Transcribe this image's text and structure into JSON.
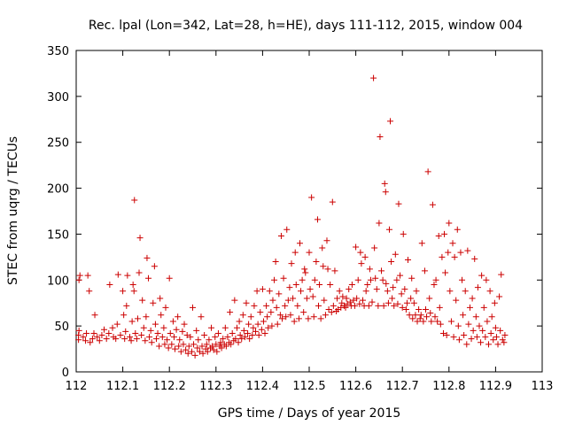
{
  "chart_data": {
    "type": "scatter",
    "title": "Rec. lpal (Lon=342, Lat=28, h=HE), days 111-112, 2015, window 004",
    "xlabel": "GPS time / Days of year 2015",
    "ylabel": "STEC from uqrg / TECUs",
    "xlim": [
      112,
      113
    ],
    "ylim": [
      0,
      350
    ],
    "xticks": [
      112,
      112.1,
      112.2,
      112.3,
      112.4,
      112.5,
      112.6,
      112.7,
      112.8,
      112.9,
      113
    ],
    "xtick_labels": [
      "112",
      "112.1",
      "112.2",
      "112.3",
      "112.4",
      "112.5",
      "112.6",
      "112.7",
      "112.8",
      "112.9",
      "113"
    ],
    "yticks": [
      0,
      50,
      100,
      150,
      200,
      250,
      300,
      350
    ],
    "ytick_labels": [
      "0",
      "50",
      "100",
      "150",
      "200",
      "250",
      "300",
      "350"
    ],
    "grid": false,
    "marker": "+",
    "color": "#cc0000",
    "points": [
      [
        112.005,
        35
      ],
      [
        112.005,
        40
      ],
      [
        112.006,
        45
      ],
      [
        112.006,
        100
      ],
      [
        112.008,
        105
      ],
      [
        112.015,
        38
      ],
      [
        112.02,
        34
      ],
      [
        112.022,
        42
      ],
      [
        112.025,
        105
      ],
      [
        112.028,
        88
      ],
      [
        112.03,
        32
      ],
      [
        112.035,
        36
      ],
      [
        112.038,
        42
      ],
      [
        112.04,
        62
      ],
      [
        112.045,
        38
      ],
      [
        112.05,
        34
      ],
      [
        112.055,
        40
      ],
      [
        112.06,
        46
      ],
      [
        112.065,
        36
      ],
      [
        112.07,
        42
      ],
      [
        112.072,
        95
      ],
      [
        112.078,
        48
      ],
      [
        112.08,
        38
      ],
      [
        112.085,
        36
      ],
      [
        112.088,
        52
      ],
      [
        112.09,
        106
      ],
      [
        112.095,
        40
      ],
      [
        112.1,
        88
      ],
      [
        112.102,
        62
      ],
      [
        112.104,
        36
      ],
      [
        112.106,
        44
      ],
      [
        112.108,
        72
      ],
      [
        112.11,
        105
      ],
      [
        112.115,
        38
      ],
      [
        112.118,
        34
      ],
      [
        112.12,
        55
      ],
      [
        112.122,
        95
      ],
      [
        112.124,
        88
      ],
      [
        112.125,
        187
      ],
      [
        112.127,
        42
      ],
      [
        112.13,
        36
      ],
      [
        112.132,
        58
      ],
      [
        112.135,
        108
      ],
      [
        112.137,
        146
      ],
      [
        112.14,
        40
      ],
      [
        112.142,
        78
      ],
      [
        112.145,
        48
      ],
      [
        112.148,
        34
      ],
      [
        112.15,
        60
      ],
      [
        112.152,
        124
      ],
      [
        112.155,
        102
      ],
      [
        112.157,
        38
      ],
      [
        112.16,
        45
      ],
      [
        112.162,
        32
      ],
      [
        112.165,
        75
      ],
      [
        112.168,
        115
      ],
      [
        112.17,
        52
      ],
      [
        112.172,
        36
      ],
      [
        112.175,
        42
      ],
      [
        112.178,
        28
      ],
      [
        112.18,
        80
      ],
      [
        112.182,
        62
      ],
      [
        112.185,
        38
      ],
      [
        112.188,
        48
      ],
      [
        112.19,
        30
      ],
      [
        112.192,
        70
      ],
      [
        112.195,
        35
      ],
      [
        112.198,
        26
      ],
      [
        112.2,
        102
      ],
      [
        112.202,
        42
      ],
      [
        112.205,
        30
      ],
      [
        112.208,
        55
      ],
      [
        112.21,
        38
      ],
      [
        112.212,
        25
      ],
      [
        112.215,
        46
      ],
      [
        112.218,
        60
      ],
      [
        112.22,
        28
      ],
      [
        112.222,
        35
      ],
      [
        112.225,
        22
      ],
      [
        112.228,
        44
      ],
      [
        112.23,
        30
      ],
      [
        112.232,
        52
      ],
      [
        112.235,
        24
      ],
      [
        112.238,
        40
      ],
      [
        112.24,
        20
      ],
      [
        112.242,
        28
      ],
      [
        112.245,
        38
      ],
      [
        112.248,
        22
      ],
      [
        112.25,
        70
      ],
      [
        112.252,
        30
      ],
      [
        112.255,
        18
      ],
      [
        112.258,
        45
      ],
      [
        112.26,
        26
      ],
      [
        112.262,
        35
      ],
      [
        112.265,
        22
      ],
      [
        112.268,
        60
      ],
      [
        112.27,
        28
      ],
      [
        112.272,
        20
      ],
      [
        112.275,
        40
      ],
      [
        112.278,
        25
      ],
      [
        112.28,
        30
      ],
      [
        112.282,
        22
      ],
      [
        112.285,
        35
      ],
      [
        112.288,
        26
      ],
      [
        112.29,
        48
      ],
      [
        112.292,
        28
      ],
      [
        112.295,
        24
      ],
      [
        112.298,
        38
      ],
      [
        112.3,
        30
      ],
      [
        112.302,
        22
      ],
      [
        112.305,
        42
      ],
      [
        112.308,
        28
      ],
      [
        112.31,
        32
      ],
      [
        112.312,
        26
      ],
      [
        112.315,
        36
      ],
      [
        112.318,
        30
      ],
      [
        112.32,
        48
      ],
      [
        112.322,
        28
      ],
      [
        112.325,
        38
      ],
      [
        112.328,
        32
      ],
      [
        112.33,
        65
      ],
      [
        112.332,
        30
      ],
      [
        112.335,
        42
      ],
      [
        112.338,
        34
      ],
      [
        112.34,
        78
      ],
      [
        112.342,
        36
      ],
      [
        112.345,
        48
      ],
      [
        112.348,
        32
      ],
      [
        112.35,
        55
      ],
      [
        112.352,
        40
      ],
      [
        112.355,
        36
      ],
      [
        112.358,
        62
      ],
      [
        112.36,
        45
      ],
      [
        112.362,
        38
      ],
      [
        112.365,
        75
      ],
      [
        112.368,
        42
      ],
      [
        112.37,
        52
      ],
      [
        112.372,
        36
      ],
      [
        112.375,
        60
      ],
      [
        112.378,
        40
      ],
      [
        112.38,
        48
      ],
      [
        112.382,
        72
      ],
      [
        112.385,
        44
      ],
      [
        112.388,
        88
      ],
      [
        112.39,
        52
      ],
      [
        112.392,
        40
      ],
      [
        112.395,
        65
      ],
      [
        112.398,
        46
      ],
      [
        112.4,
        90
      ],
      [
        112.402,
        55
      ],
      [
        112.405,
        42
      ],
      [
        112.408,
        72
      ],
      [
        112.41,
        60
      ],
      [
        112.412,
        48
      ],
      [
        112.415,
        88
      ],
      [
        112.418,
        65
      ],
      [
        112.42,
        50
      ],
      [
        112.422,
        78
      ],
      [
        112.425,
        100
      ],
      [
        112.428,
        120
      ],
      [
        112.43,
        70
      ],
      [
        112.432,
        52
      ],
      [
        112.435,
        85
      ],
      [
        112.438,
        62
      ],
      [
        112.44,
        148
      ],
      [
        112.442,
        58
      ],
      [
        112.445,
        102
      ],
      [
        112.448,
        72
      ],
      [
        112.45,
        60
      ],
      [
        112.452,
        155
      ],
      [
        112.455,
        78
      ],
      [
        112.458,
        92
      ],
      [
        112.46,
        62
      ],
      [
        112.462,
        118
      ],
      [
        112.465,
        80
      ],
      [
        112.468,
        55
      ],
      [
        112.47,
        130
      ],
      [
        112.472,
        95
      ],
      [
        112.475,
        72
      ],
      [
        112.478,
        58
      ],
      [
        112.48,
        140
      ],
      [
        112.482,
        88
      ],
      [
        112.485,
        100
      ],
      [
        112.488,
        65
      ],
      [
        112.49,
        112
      ],
      [
        112.492,
        108
      ],
      [
        112.495,
        80
      ],
      [
        112.498,
        58
      ],
      [
        112.5,
        130
      ],
      [
        112.502,
        90
      ],
      [
        112.505,
        190
      ],
      [
        112.508,
        82
      ],
      [
        112.51,
        60
      ],
      [
        112.512,
        100
      ],
      [
        112.515,
        120
      ],
      [
        112.518,
        166
      ],
      [
        112.52,
        72
      ],
      [
        112.522,
        95
      ],
      [
        112.525,
        58
      ],
      [
        112.528,
        135
      ],
      [
        112.53,
        115
      ],
      [
        112.532,
        78
      ],
      [
        112.535,
        62
      ],
      [
        112.538,
        143
      ],
      [
        112.54,
        112
      ],
      [
        112.542,
        68
      ],
      [
        112.545,
        95
      ],
      [
        112.548,
        65
      ],
      [
        112.55,
        185
      ],
      [
        112.552,
        72
      ],
      [
        112.555,
        110
      ],
      [
        112.558,
        66
      ],
      [
        112.56,
        80
      ],
      [
        112.562,
        68
      ],
      [
        112.565,
        88
      ],
      [
        112.568,
        70
      ],
      [
        112.57,
        75
      ],
      [
        112.572,
        82
      ],
      [
        112.575,
        72
      ],
      [
        112.578,
        70
      ],
      [
        112.58,
        80
      ],
      [
        112.582,
        74
      ],
      [
        112.585,
        90
      ],
      [
        112.588,
        76
      ],
      [
        112.59,
        72
      ],
      [
        112.592,
        95
      ],
      [
        112.595,
        78
      ],
      [
        112.598,
        72
      ],
      [
        112.6,
        136
      ],
      [
        112.602,
        80
      ],
      [
        112.605,
        100
      ],
      [
        112.608,
        74
      ],
      [
        112.61,
        130
      ],
      [
        112.612,
        118
      ],
      [
        112.615,
        78
      ],
      [
        112.618,
        72
      ],
      [
        112.62,
        125
      ],
      [
        112.622,
        88
      ],
      [
        112.625,
        95
      ],
      [
        112.628,
        72
      ],
      [
        112.63,
        112
      ],
      [
        112.632,
        100
      ],
      [
        112.635,
        76
      ],
      [
        112.638,
        320
      ],
      [
        112.64,
        135
      ],
      [
        112.642,
        102
      ],
      [
        112.645,
        90
      ],
      [
        112.648,
        72
      ],
      [
        112.65,
        162
      ],
      [
        112.652,
        256
      ],
      [
        112.655,
        110
      ],
      [
        112.658,
        100
      ],
      [
        112.66,
        72
      ],
      [
        112.662,
        205
      ],
      [
        112.664,
        196
      ],
      [
        112.665,
        96
      ],
      [
        112.668,
        88
      ],
      [
        112.67,
        75
      ],
      [
        112.672,
        155
      ],
      [
        112.674,
        273
      ],
      [
        112.676,
        120
      ],
      [
        112.678,
        80
      ],
      [
        112.68,
        92
      ],
      [
        112.682,
        72
      ],
      [
        112.685,
        128
      ],
      [
        112.688,
        100
      ],
      [
        112.69,
        74
      ],
      [
        112.692,
        183
      ],
      [
        112.695,
        105
      ],
      [
        112.698,
        85
      ],
      [
        112.7,
        70
      ],
      [
        112.702,
        150
      ],
      [
        112.705,
        90
      ],
      [
        112.708,
        68
      ],
      [
        112.71,
        75
      ],
      [
        112.712,
        122
      ],
      [
        112.715,
        62
      ],
      [
        112.718,
        80
      ],
      [
        112.72,
        102
      ],
      [
        112.722,
        58
      ],
      [
        112.725,
        75
      ],
      [
        112.728,
        62
      ],
      [
        112.73,
        88
      ],
      [
        112.732,
        55
      ],
      [
        112.735,
        68
      ],
      [
        112.738,
        58
      ],
      [
        112.74,
        62
      ],
      [
        112.742,
        140
      ],
      [
        112.745,
        55
      ],
      [
        112.748,
        110
      ],
      [
        112.75,
        68
      ],
      [
        112.752,
        60
      ],
      [
        112.755,
        218
      ],
      [
        112.758,
        80
      ],
      [
        112.76,
        64
      ],
      [
        112.762,
        55
      ],
      [
        112.765,
        182
      ],
      [
        112.768,
        95
      ],
      [
        112.77,
        60
      ],
      [
        112.772,
        100
      ],
      [
        112.775,
        55
      ],
      [
        112.778,
        148
      ],
      [
        112.78,
        70
      ],
      [
        112.782,
        52
      ],
      [
        112.785,
        125
      ],
      [
        112.788,
        42
      ],
      [
        112.79,
        150
      ],
      [
        112.792,
        108
      ],
      [
        112.795,
        40
      ],
      [
        112.798,
        130
      ],
      [
        112.8,
        162
      ],
      [
        112.802,
        88
      ],
      [
        112.805,
        55
      ],
      [
        112.808,
        140
      ],
      [
        112.81,
        38
      ],
      [
        112.812,
        125
      ],
      [
        112.815,
        78
      ],
      [
        112.818,
        155
      ],
      [
        112.82,
        50
      ],
      [
        112.822,
        35
      ],
      [
        112.825,
        130
      ],
      [
        112.828,
        100
      ],
      [
        112.83,
        62
      ],
      [
        112.832,
        40
      ],
      [
        112.835,
        88
      ],
      [
        112.838,
        30
      ],
      [
        112.84,
        132
      ],
      [
        112.842,
        52
      ],
      [
        112.845,
        70
      ],
      [
        112.848,
        36
      ],
      [
        112.85,
        80
      ],
      [
        112.852,
        45
      ],
      [
        112.855,
        123
      ],
      [
        112.858,
        60
      ],
      [
        112.86,
        38
      ],
      [
        112.862,
        92
      ],
      [
        112.865,
        50
      ],
      [
        112.868,
        32
      ],
      [
        112.87,
        105
      ],
      [
        112.872,
        45
      ],
      [
        112.875,
        70
      ],
      [
        112.878,
        38
      ],
      [
        112.88,
        100
      ],
      [
        112.882,
        55
      ],
      [
        112.885,
        30
      ],
      [
        112.888,
        88
      ],
      [
        112.89,
        42
      ],
      [
        112.892,
        60
      ],
      [
        112.895,
        35
      ],
      [
        112.898,
        75
      ],
      [
        112.9,
        48
      ],
      [
        112.902,
        38
      ],
      [
        112.905,
        30
      ],
      [
        112.908,
        82
      ],
      [
        112.91,
        45
      ],
      [
        112.912,
        106
      ],
      [
        112.915,
        35
      ],
      [
        112.918,
        32
      ],
      [
        112.92,
        40
      ]
    ]
  }
}
